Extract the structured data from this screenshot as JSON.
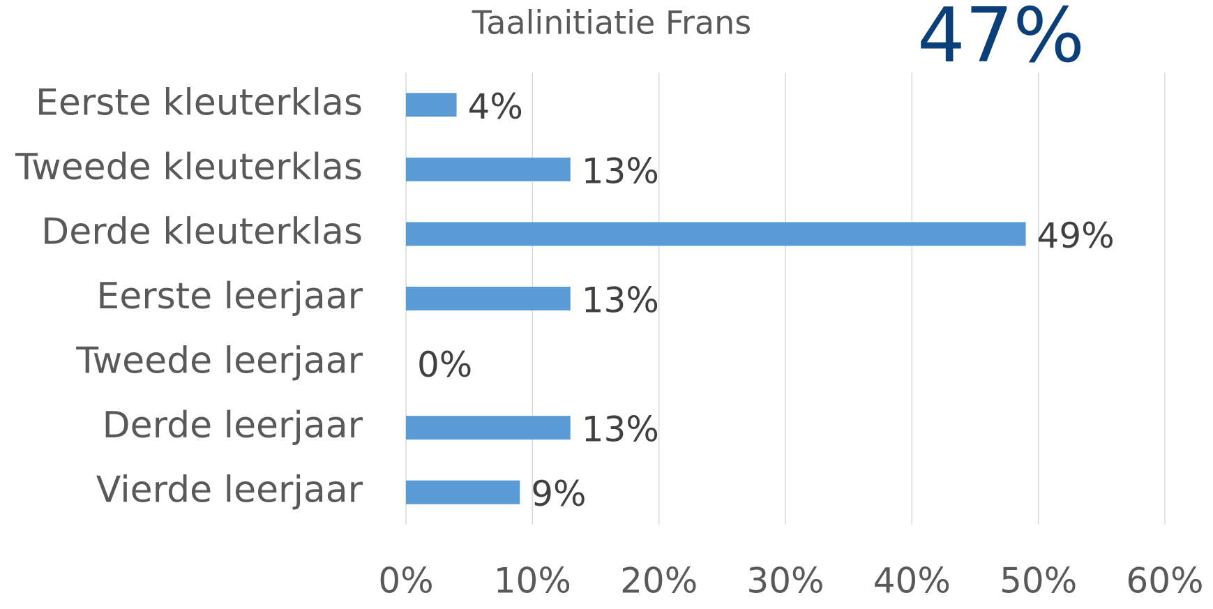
{
  "chart_data": {
    "type": "bar",
    "orientation": "horizontal",
    "title": "Taalinitiatie Frans",
    "annotation": "47%",
    "categories": [
      "Eerste kleuterklas",
      "Tweede kleuterklas",
      "Derde kleuterklas",
      "Eerste leerjaar",
      "Tweede leerjaar",
      "Derde leerjaar",
      "Vierde leerjaar"
    ],
    "values": [
      4,
      13,
      49,
      13,
      0,
      13,
      9
    ],
    "value_labels": [
      "4%",
      "13%",
      "49%",
      "13%",
      "0%",
      "13%",
      "9%"
    ],
    "color": "#5b9bd5",
    "xlim": [
      0,
      60
    ],
    "xticks": [
      {
        "value": 0,
        "label": "0%"
      },
      {
        "value": 10,
        "label": "10%"
      },
      {
        "value": 20,
        "label": "20%"
      },
      {
        "value": 30,
        "label": "30%"
      },
      {
        "value": 40,
        "label": "40%"
      },
      {
        "value": 50,
        "label": "50%"
      },
      {
        "value": 60,
        "label": "60%"
      }
    ],
    "grid": true
  }
}
